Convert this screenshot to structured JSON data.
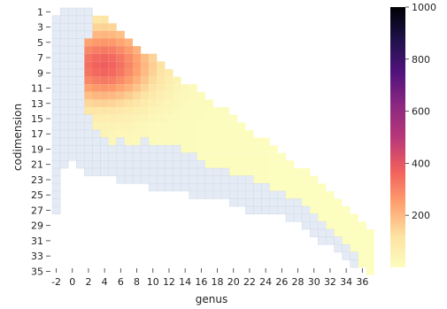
{
  "chart_data": {
    "type": "heatmap",
    "xlabel": "genus",
    "ylabel": "codimension",
    "x_tick_labels": [
      "-2",
      "0",
      "2",
      "4",
      "6",
      "8",
      "10",
      "12",
      "14",
      "16",
      "18",
      "20",
      "22",
      "24",
      "26",
      "28",
      "30",
      "32",
      "34",
      "36"
    ],
    "y_tick_labels": [
      "1",
      "3",
      "5",
      "7",
      "9",
      "11",
      "13",
      "15",
      "17",
      "19",
      "21",
      "23",
      "25",
      "27",
      "29",
      "31",
      "33",
      "35"
    ],
    "x_range": [
      -2,
      37
    ],
    "y_range": [
      1,
      35
    ],
    "colorbar": {
      "colormap": "magma_r",
      "vmin": 0,
      "vmax": 1000,
      "tick_labels": [
        "200",
        "400",
        "600",
        "800",
        "1000"
      ]
    },
    "missing_color": "#e4ebf5",
    "grid_color": "#d2dbe8",
    "empty_region": {
      "min_codim_by_genus": [
        {
          "genus": -2,
          "codim": 2
        },
        {
          "genus": -1,
          "codim": 1
        },
        {
          "genus": 0,
          "codim": 1
        },
        {
          "genus": 1,
          "codim": 1
        },
        {
          "genus": 2,
          "codim": 1
        },
        {
          "genus": 3,
          "codim": 2
        },
        {
          "genus": 4,
          "codim": 2
        },
        {
          "genus": 5,
          "codim": 3
        },
        {
          "genus": 6,
          "codim": 4
        },
        {
          "genus": 7,
          "codim": 5
        },
        {
          "genus": 8,
          "codim": 6
        },
        {
          "genus": 9,
          "codim": 7
        },
        {
          "genus": 10,
          "codim": 7
        },
        {
          "genus": 11,
          "codim": 8
        },
        {
          "genus": 12,
          "codim": 9
        },
        {
          "genus": 13,
          "codim": 10
        },
        {
          "genus": 14,
          "codim": 11
        },
        {
          "genus": 15,
          "codim": 11
        },
        {
          "genus": 16,
          "codim": 12
        },
        {
          "genus": 17,
          "codim": 13
        },
        {
          "genus": 18,
          "codim": 14
        },
        {
          "genus": 19,
          "codim": 14
        },
        {
          "genus": 20,
          "codim": 15
        },
        {
          "genus": 21,
          "codim": 16
        },
        {
          "genus": 22,
          "codim": 17
        },
        {
          "genus": 23,
          "codim": 18
        },
        {
          "genus": 24,
          "codim": 18
        },
        {
          "genus": 25,
          "codim": 19
        },
        {
          "genus": 26,
          "codim": 20
        },
        {
          "genus": 27,
          "codim": 21
        },
        {
          "genus": 28,
          "codim": 22
        },
        {
          "genus": 29,
          "codim": 22
        },
        {
          "genus": 30,
          "codim": 23
        },
        {
          "genus": 31,
          "codim": 24
        },
        {
          "genus": 32,
          "codim": 25
        },
        {
          "genus": 33,
          "codim": 26
        },
        {
          "genus": 34,
          "codim": 27
        },
        {
          "genus": 35,
          "codim": 28
        },
        {
          "genus": 36,
          "codim": 29
        },
        {
          "genus": 37,
          "codim": 30
        }
      ],
      "max_codim_by_genus": [
        {
          "genus": -2,
          "codim": 27
        },
        {
          "genus": -1,
          "codim": 21
        },
        {
          "genus": 0,
          "codim": 20
        },
        {
          "genus": 1,
          "codim": 21
        },
        {
          "genus": 2,
          "codim": 22
        },
        {
          "genus": 3,
          "codim": 22
        },
        {
          "genus": 4,
          "codim": 22
        },
        {
          "genus": 5,
          "codim": 22
        },
        {
          "genus": 6,
          "codim": 23
        },
        {
          "genus": 7,
          "codim": 23
        },
        {
          "genus": 8,
          "codim": 23
        },
        {
          "genus": 9,
          "codim": 23
        },
        {
          "genus": 10,
          "codim": 24
        },
        {
          "genus": 11,
          "codim": 24
        },
        {
          "genus": 12,
          "codim": 24
        },
        {
          "genus": 13,
          "codim": 24
        },
        {
          "genus": 14,
          "codim": 24
        },
        {
          "genus": 15,
          "codim": 25
        },
        {
          "genus": 16,
          "codim": 25
        },
        {
          "genus": 17,
          "codim": 25
        },
        {
          "genus": 18,
          "codim": 25
        },
        {
          "genus": 19,
          "codim": 25
        },
        {
          "genus": 20,
          "codim": 26
        },
        {
          "genus": 21,
          "codim": 26
        },
        {
          "genus": 22,
          "codim": 27
        },
        {
          "genus": 23,
          "codim": 27
        },
        {
          "genus": 24,
          "codim": 27
        },
        {
          "genus": 25,
          "codim": 27
        },
        {
          "genus": 26,
          "codim": 27
        },
        {
          "genus": 27,
          "codim": 28
        },
        {
          "genus": 28,
          "codim": 28
        },
        {
          "genus": 29,
          "codim": 29
        },
        {
          "genus": 30,
          "codim": 30
        },
        {
          "genus": 31,
          "codim": 31
        },
        {
          "genus": 32,
          "codim": 31
        },
        {
          "genus": 33,
          "codim": 32
        },
        {
          "genus": 34,
          "codim": 33
        },
        {
          "genus": 35,
          "codim": 34
        },
        {
          "genus": 36,
          "codim": 34
        },
        {
          "genus": 37,
          "codim": 35
        }
      ]
    },
    "count_region": {
      "min_codim_by_genus": [
        {
          "genus": 2,
          "codim": 5
        },
        {
          "genus": 3,
          "codim": 2
        },
        {
          "genus": 4,
          "codim": 2
        },
        {
          "genus": 5,
          "codim": 3
        },
        {
          "genus": 6,
          "codim": 4
        },
        {
          "genus": 7,
          "codim": 5
        },
        {
          "genus": 8,
          "codim": 6
        },
        {
          "genus": 9,
          "codim": 7
        },
        {
          "genus": 10,
          "codim": 7
        },
        {
          "genus": 11,
          "codim": 8
        },
        {
          "genus": 12,
          "codim": 9
        },
        {
          "genus": 13,
          "codim": 10
        },
        {
          "genus": 14,
          "codim": 11
        },
        {
          "genus": 15,
          "codim": 11
        },
        {
          "genus": 16,
          "codim": 12
        },
        {
          "genus": 17,
          "codim": 13
        },
        {
          "genus": 18,
          "codim": 14
        },
        {
          "genus": 19,
          "codim": 14
        },
        {
          "genus": 20,
          "codim": 15
        },
        {
          "genus": 21,
          "codim": 16
        },
        {
          "genus": 22,
          "codim": 17
        },
        {
          "genus": 23,
          "codim": 18
        },
        {
          "genus": 24,
          "codim": 18
        },
        {
          "genus": 25,
          "codim": 19
        },
        {
          "genus": 26,
          "codim": 20
        },
        {
          "genus": 27,
          "codim": 21
        },
        {
          "genus": 28,
          "codim": 22
        },
        {
          "genus": 29,
          "codim": 22
        },
        {
          "genus": 30,
          "codim": 23
        },
        {
          "genus": 31,
          "codim": 24
        },
        {
          "genus": 32,
          "codim": 25
        },
        {
          "genus": 33,
          "codim": 26
        },
        {
          "genus": 34,
          "codim": 27
        },
        {
          "genus": 35,
          "codim": 28
        },
        {
          "genus": 36,
          "codim": 29
        },
        {
          "genus": 37,
          "codim": 30
        }
      ],
      "max_codim_by_genus": [
        {
          "genus": 2,
          "codim": 14
        },
        {
          "genus": 3,
          "codim": 16
        },
        {
          "genus": 4,
          "codim": 17
        },
        {
          "genus": 5,
          "codim": 18
        },
        {
          "genus": 6,
          "codim": 17
        },
        {
          "genus": 7,
          "codim": 18
        },
        {
          "genus": 8,
          "codim": 18
        },
        {
          "genus": 9,
          "codim": 17
        },
        {
          "genus": 10,
          "codim": 18
        },
        {
          "genus": 11,
          "codim": 18
        },
        {
          "genus": 12,
          "codim": 18
        },
        {
          "genus": 13,
          "codim": 18
        },
        {
          "genus": 14,
          "codim": 19
        },
        {
          "genus": 15,
          "codim": 19
        },
        {
          "genus": 16,
          "codim": 20
        },
        {
          "genus": 17,
          "codim": 21
        },
        {
          "genus": 18,
          "codim": 21
        },
        {
          "genus": 19,
          "codim": 21
        },
        {
          "genus": 20,
          "codim": 22
        },
        {
          "genus": 21,
          "codim": 22
        },
        {
          "genus": 22,
          "codim": 22
        },
        {
          "genus": 23,
          "codim": 23
        },
        {
          "genus": 24,
          "codim": 23
        },
        {
          "genus": 25,
          "codim": 24
        },
        {
          "genus": 26,
          "codim": 24
        },
        {
          "genus": 27,
          "codim": 25
        },
        {
          "genus": 28,
          "codim": 25
        },
        {
          "genus": 29,
          "codim": 26
        },
        {
          "genus": 30,
          "codim": 27
        },
        {
          "genus": 31,
          "codim": 28
        },
        {
          "genus": 32,
          "codim": 29
        },
        {
          "genus": 33,
          "codim": 30
        },
        {
          "genus": 34,
          "codim": 31
        },
        {
          "genus": 35,
          "codim": 32
        },
        {
          "genus": 36,
          "codim": 34
        },
        {
          "genus": 37,
          "codim": 35
        }
      ]
    },
    "peak": {
      "genus": 4,
      "codim": 8,
      "value": 350
    },
    "value_model": {
      "peak_value": 350,
      "spread_genus": 4.5,
      "spread_codim": 3.5,
      "tail_value": 25,
      "tail_decay": 0.12
    }
  }
}
